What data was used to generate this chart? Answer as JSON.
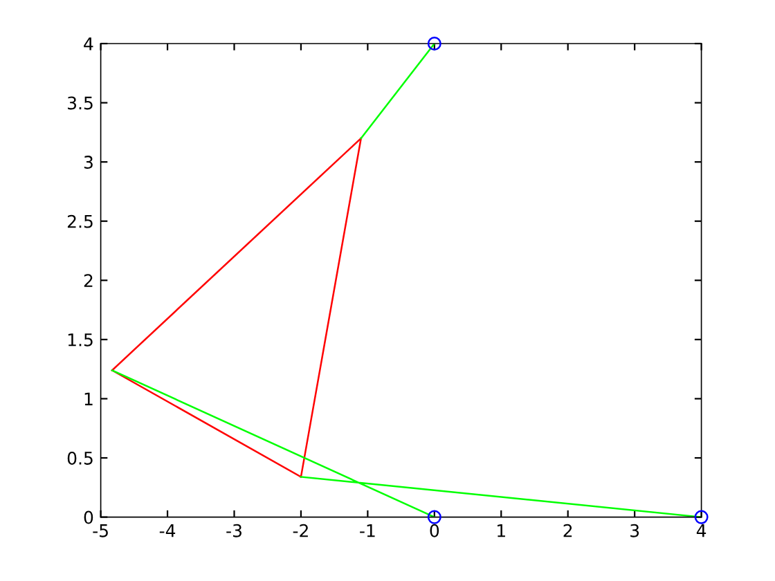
{
  "chart_data": {
    "type": "line",
    "xlim": [
      -5,
      4
    ],
    "ylim": [
      0,
      4
    ],
    "xticks": [
      -5,
      -4,
      -3,
      -2,
      -1,
      0,
      1,
      2,
      3,
      4
    ],
    "yticks": [
      0,
      0.5,
      1,
      1.5,
      2,
      2.5,
      3,
      3.5,
      4
    ],
    "grid": false,
    "legend": false,
    "line_style": "solid",
    "series": [
      {
        "color": "#ff0000",
        "x": [
          -4.83,
          -1.1
        ],
        "values": [
          1.24,
          3.2
        ]
      },
      {
        "color": "#ff0000",
        "x": [
          -1.1,
          -2.0
        ],
        "values": [
          3.2,
          0.34
        ]
      },
      {
        "color": "#ff0000",
        "x": [
          -2.0,
          -4.83
        ],
        "values": [
          0.34,
          1.24
        ]
      },
      {
        "color": "#00ff00",
        "x": [
          0,
          -1.1,
          null,
          -4.83,
          0,
          null,
          -2.0,
          4
        ],
        "values": [
          4,
          3.2,
          null,
          1.24,
          0,
          null,
          0.34,
          0
        ]
      },
      {
        "type": "scatter",
        "marker": "circle",
        "color": "#0000ff",
        "x": [
          0,
          0,
          4
        ],
        "values": [
          4,
          0,
          0
        ]
      }
    ]
  }
}
